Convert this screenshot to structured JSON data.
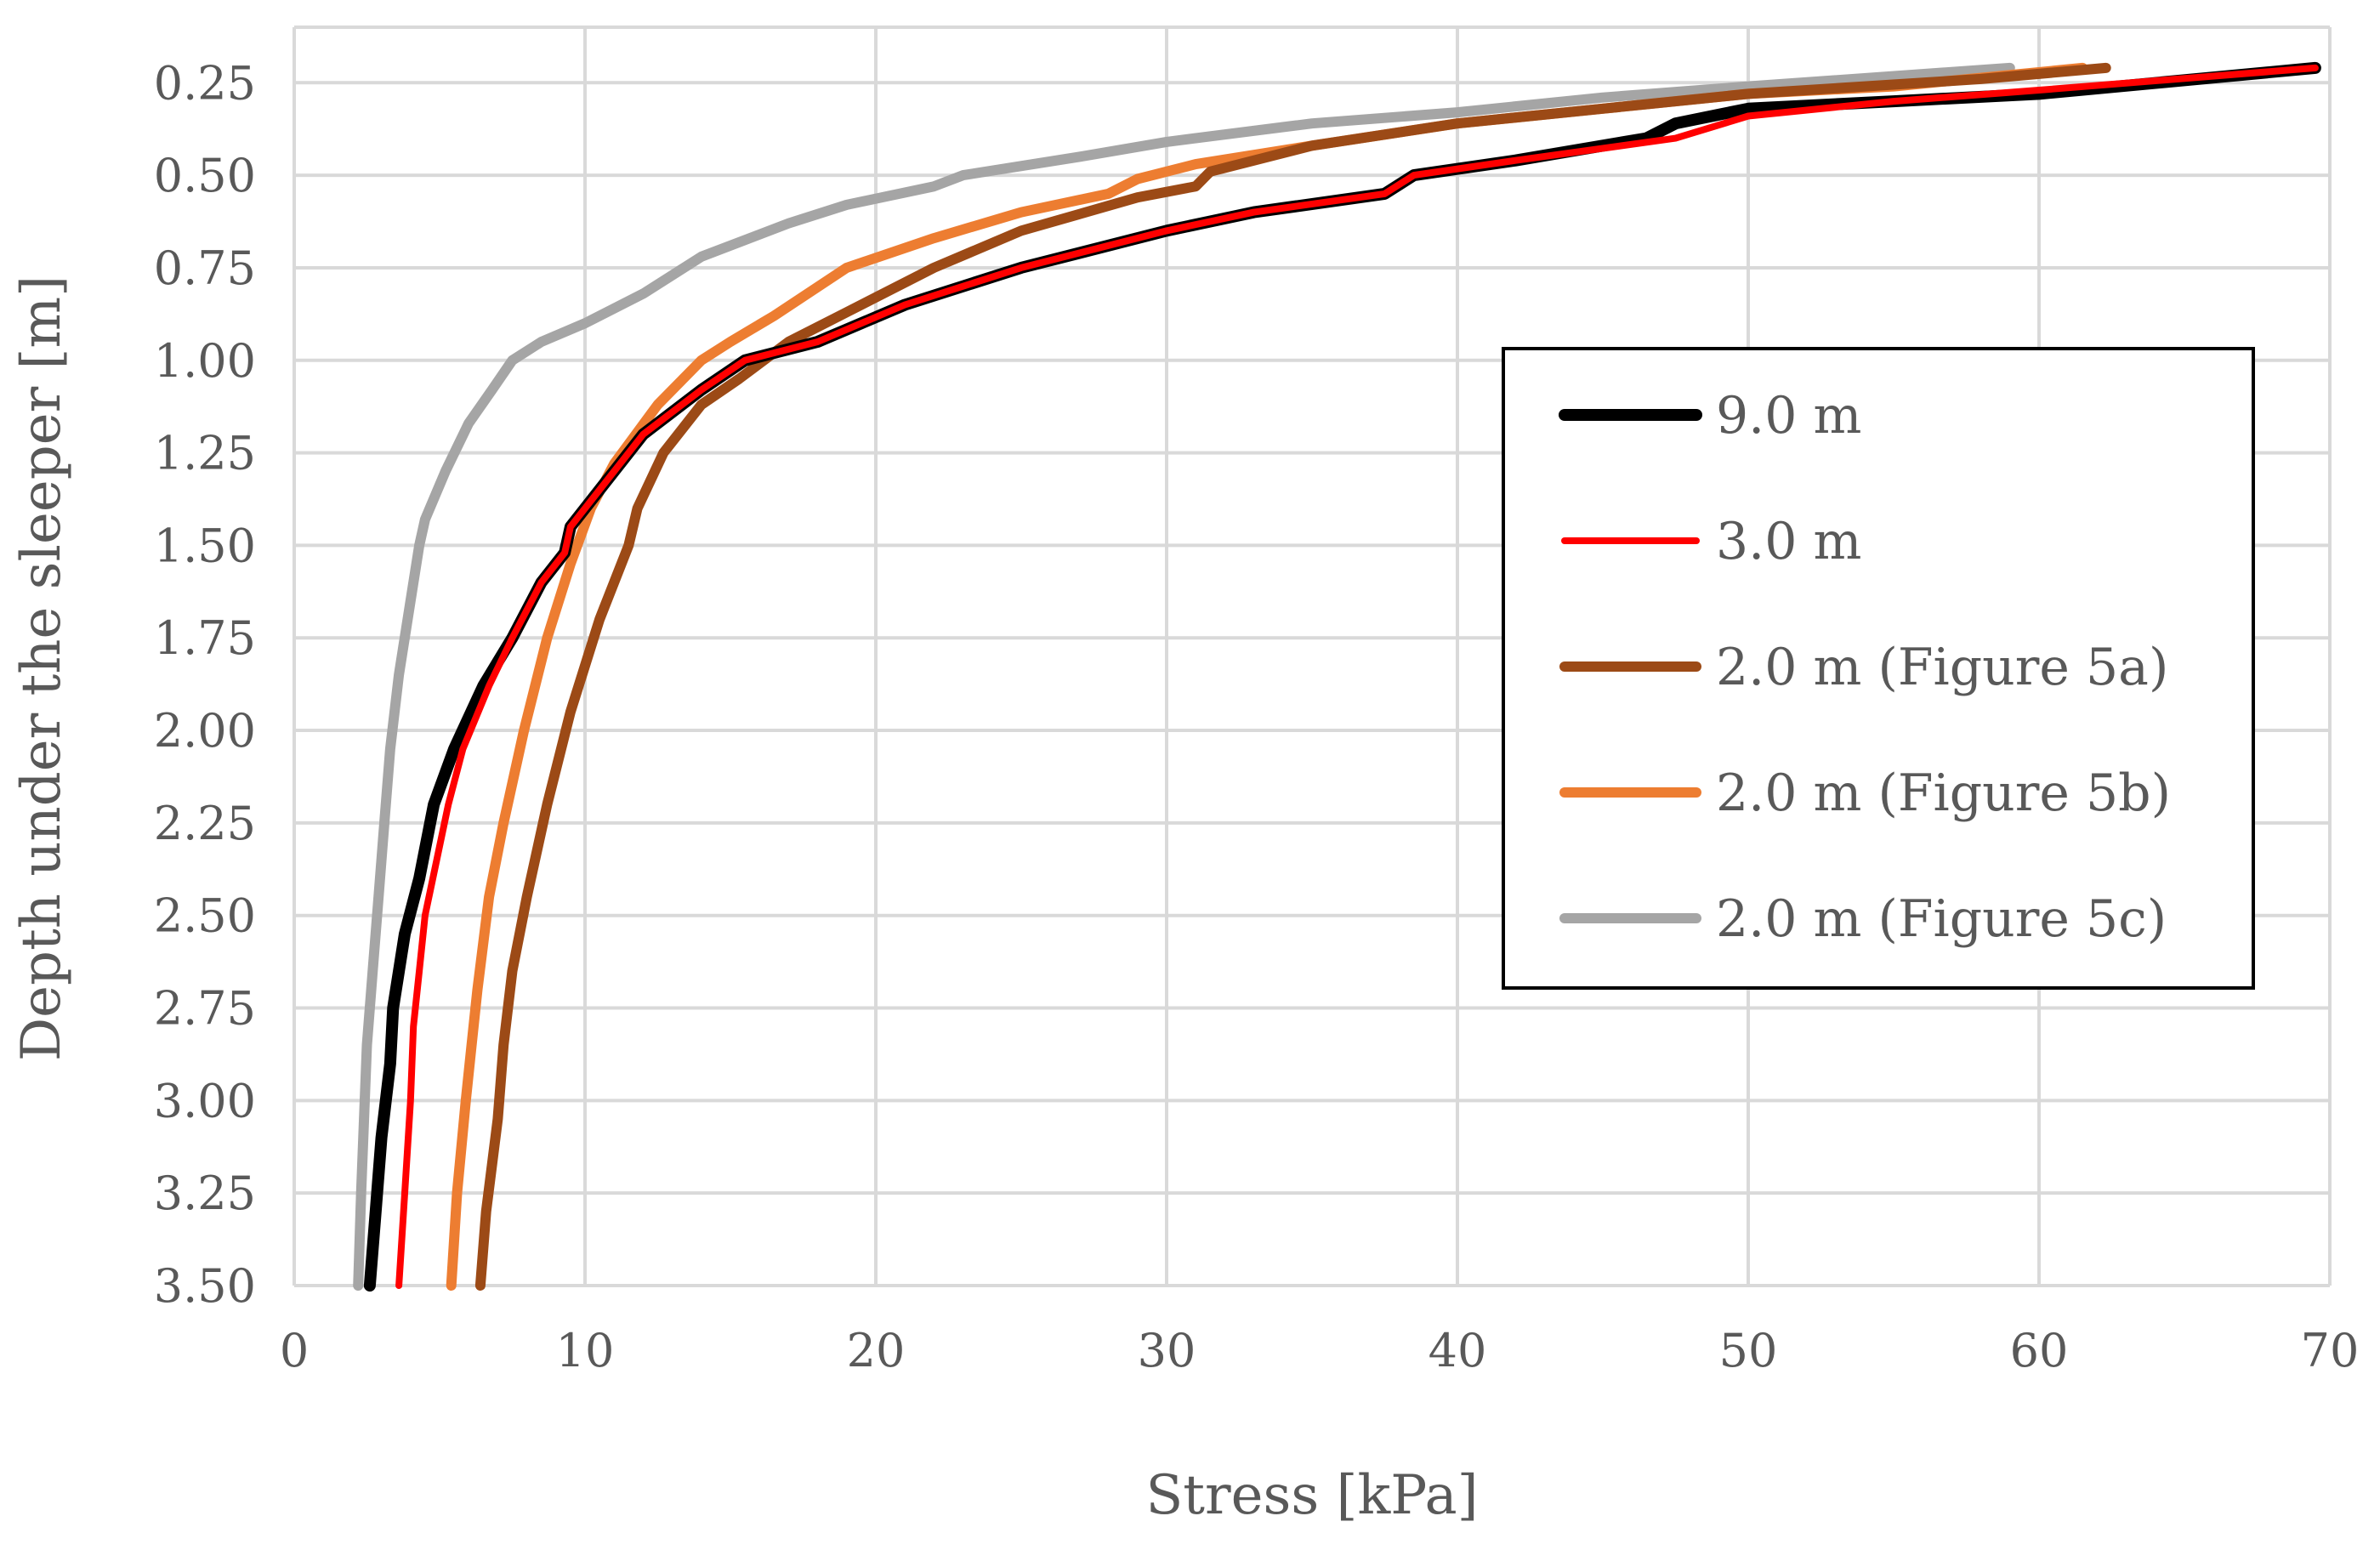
{
  "chart_data": {
    "type": "line",
    "title": "",
    "xlabel": "Stress [kPa]",
    "ylabel": "Depth under the sleeper [m]",
    "xlim": [
      0,
      70
    ],
    "ylim": [
      0.1,
      3.5
    ],
    "y_inverted": true,
    "grid": true,
    "legend_position": "right",
    "x_ticks": [
      0,
      10,
      20,
      30,
      40,
      50,
      60,
      70
    ],
    "x_tick_labels": [
      "0",
      "10",
      "20",
      "30",
      "40",
      "50",
      "60",
      "70"
    ],
    "y_ticks": [
      0.25,
      0.5,
      0.75,
      1.0,
      1.25,
      1.5,
      1.75,
      2.0,
      2.25,
      2.5,
      2.75,
      3.0,
      3.25,
      3.5
    ],
    "y_tick_labels": [
      "0.25",
      "0.50",
      "0.75",
      "1.00",
      "1.25",
      "1.50",
      "1.75",
      "2.00",
      "2.25",
      "2.50",
      "2.75",
      "3.00",
      "3.25",
      "3.50"
    ],
    "series": [
      {
        "name": "9.0 m",
        "color": "#000000",
        "points": [
          [
            69.5,
            0.21
          ],
          [
            60,
            0.28
          ],
          [
            55,
            0.3
          ],
          [
            50,
            0.32
          ],
          [
            47.5,
            0.36
          ],
          [
            46.5,
            0.4
          ],
          [
            42,
            0.46
          ],
          [
            38.5,
            0.5
          ],
          [
            37.5,
            0.55
          ],
          [
            33,
            0.6
          ],
          [
            30,
            0.65
          ],
          [
            25,
            0.75
          ],
          [
            21,
            0.85
          ],
          [
            18,
            0.95
          ],
          [
            15.5,
            1.0
          ],
          [
            14,
            1.08
          ],
          [
            12,
            1.2
          ],
          [
            10.5,
            1.35
          ],
          [
            9.5,
            1.45
          ],
          [
            9.3,
            1.52
          ],
          [
            8.5,
            1.6
          ],
          [
            7.5,
            1.75
          ],
          [
            6.5,
            1.88
          ],
          [
            5.5,
            2.05
          ],
          [
            4.8,
            2.2
          ],
          [
            4.3,
            2.4
          ],
          [
            3.8,
            2.55
          ],
          [
            3.4,
            2.75
          ],
          [
            3.3,
            2.9
          ],
          [
            3.0,
            3.1
          ],
          [
            2.8,
            3.3
          ],
          [
            2.6,
            3.5
          ]
        ]
      },
      {
        "name": "3.0 m",
        "color": "#ff0000",
        "points": [
          [
            69.5,
            0.21
          ],
          [
            60,
            0.27
          ],
          [
            55,
            0.3
          ],
          [
            50,
            0.34
          ],
          [
            47.5,
            0.4
          ],
          [
            42,
            0.46
          ],
          [
            38.5,
            0.5
          ],
          [
            37.5,
            0.55
          ],
          [
            33,
            0.6
          ],
          [
            30,
            0.65
          ],
          [
            25,
            0.75
          ],
          [
            21,
            0.85
          ],
          [
            18,
            0.95
          ],
          [
            15.5,
            1.0
          ],
          [
            14,
            1.08
          ],
          [
            12,
            1.2
          ],
          [
            10.5,
            1.35
          ],
          [
            9.5,
            1.45
          ],
          [
            9.3,
            1.52
          ],
          [
            8.5,
            1.6
          ],
          [
            7.5,
            1.75
          ],
          [
            6.7,
            1.88
          ],
          [
            5.8,
            2.05
          ],
          [
            5.3,
            2.2
          ],
          [
            4.9,
            2.35
          ],
          [
            4.5,
            2.5
          ],
          [
            4.3,
            2.65
          ],
          [
            4.1,
            2.8
          ],
          [
            4.0,
            3.0
          ],
          [
            3.8,
            3.25
          ],
          [
            3.6,
            3.5
          ]
        ]
      },
      {
        "name": "2.0 m (Figure 5a)",
        "color": "#9c4a16",
        "points": [
          [
            62.3,
            0.21
          ],
          [
            58,
            0.24
          ],
          [
            50,
            0.28
          ],
          [
            45,
            0.32
          ],
          [
            40,
            0.36
          ],
          [
            35,
            0.42
          ],
          [
            31.5,
            0.49
          ],
          [
            31,
            0.53
          ],
          [
            29,
            0.56
          ],
          [
            25,
            0.65
          ],
          [
            22,
            0.75
          ],
          [
            19,
            0.87
          ],
          [
            17,
            0.95
          ],
          [
            15.3,
            1.05
          ],
          [
            14,
            1.12
          ],
          [
            12.7,
            1.25
          ],
          [
            11.8,
            1.4
          ],
          [
            11.5,
            1.5
          ],
          [
            10.5,
            1.7
          ],
          [
            9.5,
            1.95
          ],
          [
            8.7,
            2.2
          ],
          [
            8.0,
            2.45
          ],
          [
            7.5,
            2.65
          ],
          [
            7.2,
            2.85
          ],
          [
            7.0,
            3.05
          ],
          [
            6.6,
            3.3
          ],
          [
            6.4,
            3.5
          ]
        ]
      },
      {
        "name": "2.0 m (Figure 5b)",
        "color": "#ed7d31",
        "points": [
          [
            61.5,
            0.21
          ],
          [
            55,
            0.26
          ],
          [
            50,
            0.28
          ],
          [
            45,
            0.32
          ],
          [
            40,
            0.36
          ],
          [
            35,
            0.42
          ],
          [
            31,
            0.47
          ],
          [
            29,
            0.51
          ],
          [
            28,
            0.55
          ],
          [
            25,
            0.6
          ],
          [
            22,
            0.67
          ],
          [
            19,
            0.75
          ],
          [
            16.5,
            0.88
          ],
          [
            15,
            0.95
          ],
          [
            14,
            1.0
          ],
          [
            12.5,
            1.12
          ],
          [
            11,
            1.28
          ],
          [
            10.2,
            1.4
          ],
          [
            9.5,
            1.55
          ],
          [
            8.7,
            1.75
          ],
          [
            7.9,
            2.0
          ],
          [
            7.2,
            2.25
          ],
          [
            6.7,
            2.45
          ],
          [
            6.3,
            2.7
          ],
          [
            6.1,
            2.85
          ],
          [
            5.9,
            3.0
          ],
          [
            5.6,
            3.25
          ],
          [
            5.4,
            3.5
          ]
        ]
      },
      {
        "name": "2.0 m (Figure 5c)",
        "color": "#a5a5a5",
        "points": [
          [
            59,
            0.21
          ],
          [
            50,
            0.26
          ],
          [
            45,
            0.29
          ],
          [
            40,
            0.33
          ],
          [
            35,
            0.36
          ],
          [
            30,
            0.41
          ],
          [
            27,
            0.45
          ],
          [
            23,
            0.5
          ],
          [
            22,
            0.53
          ],
          [
            19,
            0.58
          ],
          [
            17,
            0.63
          ],
          [
            14,
            0.72
          ],
          [
            12,
            0.82
          ],
          [
            10,
            0.9
          ],
          [
            8.5,
            0.95
          ],
          [
            7.5,
            1.0
          ],
          [
            6.8,
            1.08
          ],
          [
            6.0,
            1.17
          ],
          [
            5.2,
            1.3
          ],
          [
            4.5,
            1.43
          ],
          [
            4.3,
            1.5
          ],
          [
            4.0,
            1.65
          ],
          [
            3.6,
            1.85
          ],
          [
            3.3,
            2.05
          ],
          [
            3.1,
            2.25
          ],
          [
            2.9,
            2.45
          ],
          [
            2.7,
            2.65
          ],
          [
            2.5,
            2.85
          ],
          [
            2.4,
            3.05
          ],
          [
            2.3,
            3.25
          ],
          [
            2.2,
            3.5
          ]
        ]
      }
    ]
  }
}
